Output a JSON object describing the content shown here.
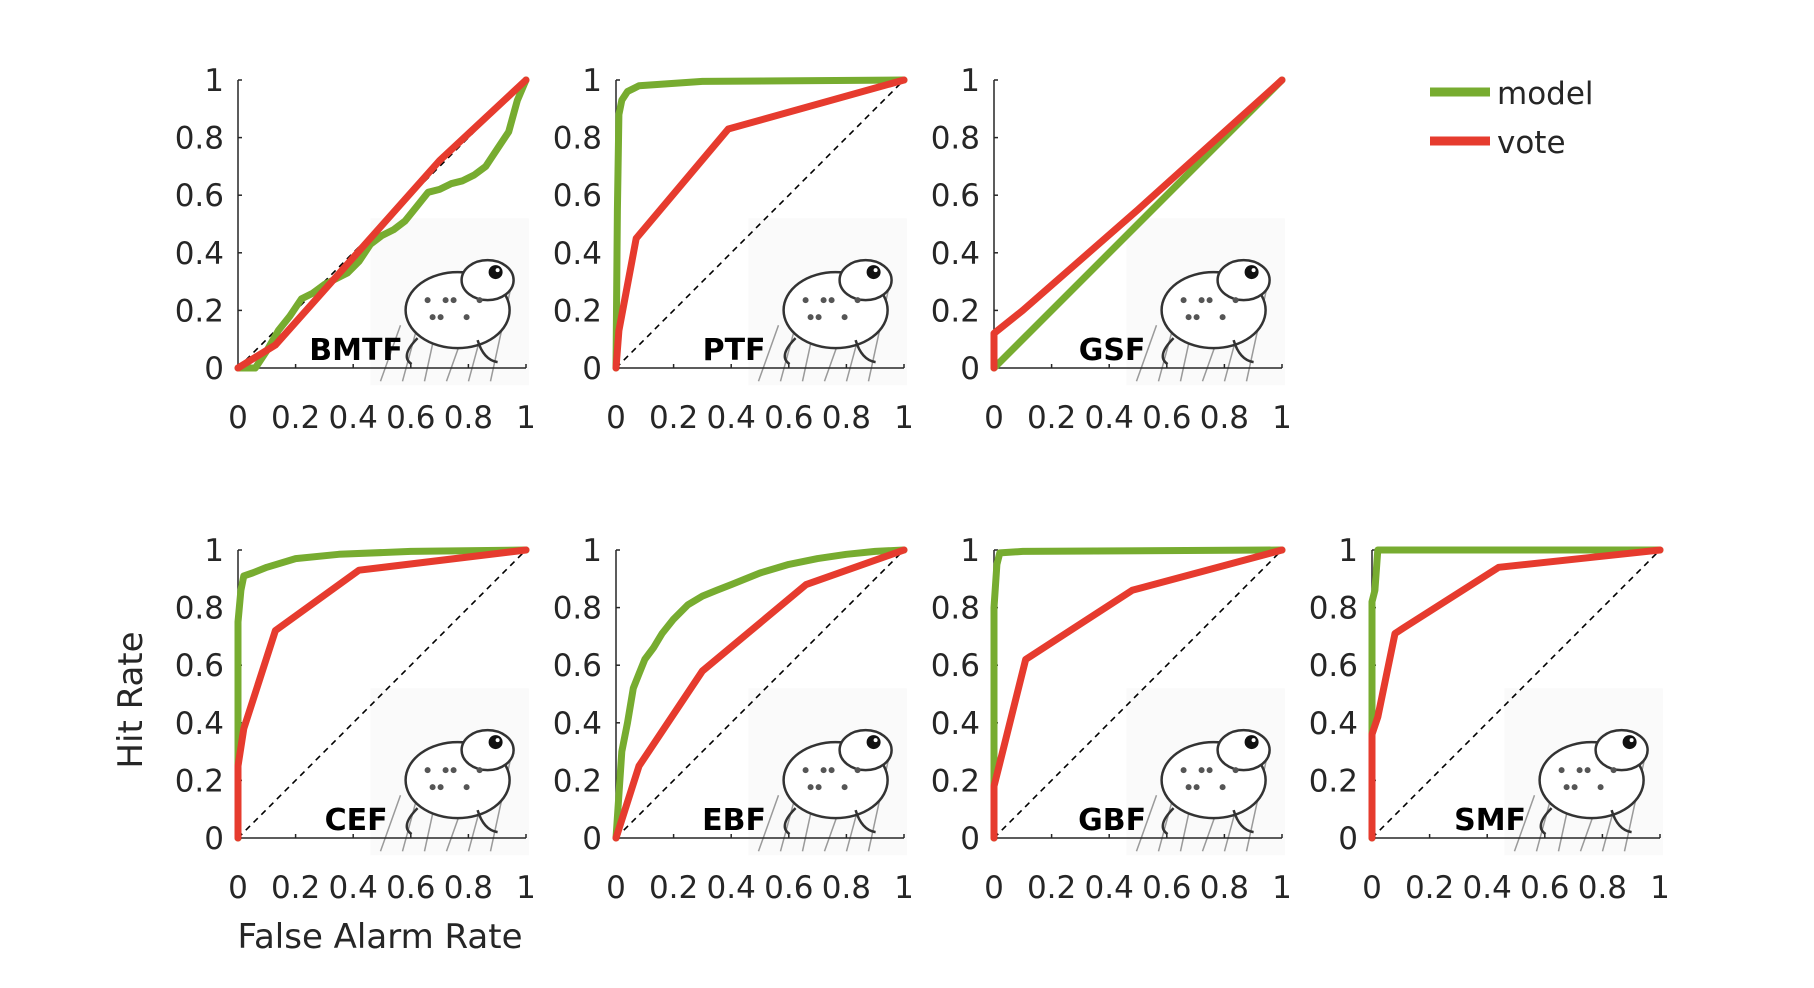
{
  "figure": {
    "xlabel": "False Alarm Rate",
    "ylabel": "Hit Rate",
    "legend": {
      "placement": "top-right",
      "entries": [
        {
          "label": "model",
          "color": "#77AC30"
        },
        {
          "label": "vote",
          "color": "#E63B2E"
        }
      ]
    }
  },
  "chart_data": [
    {
      "type": "line",
      "label": "BMTF",
      "illustration": "frog-on-log-icon",
      "xlim": [
        0,
        1
      ],
      "ylim": [
        0,
        1
      ],
      "xticks": [
        "0",
        "0.2",
        "0.4",
        "0.6",
        "0.8",
        "1"
      ],
      "yticks": [
        "0",
        "0.2",
        "0.4",
        "0.6",
        "0.8",
        "1"
      ],
      "series": [
        {
          "name": "model",
          "color": "#77AC30",
          "points": [
            [
              0,
              0
            ],
            [
              0.06,
              0
            ],
            [
              0.1,
              0.06
            ],
            [
              0.14,
              0.13
            ],
            [
              0.18,
              0.18
            ],
            [
              0.22,
              0.24
            ],
            [
              0.26,
              0.26
            ],
            [
              0.3,
              0.29
            ],
            [
              0.34,
              0.31
            ],
            [
              0.38,
              0.33
            ],
            [
              0.42,
              0.37
            ],
            [
              0.46,
              0.43
            ],
            [
              0.5,
              0.46
            ],
            [
              0.54,
              0.48
            ],
            [
              0.58,
              0.51
            ],
            [
              0.62,
              0.56
            ],
            [
              0.66,
              0.61
            ],
            [
              0.7,
              0.62
            ],
            [
              0.74,
              0.64
            ],
            [
              0.78,
              0.65
            ],
            [
              0.82,
              0.67
            ],
            [
              0.86,
              0.7
            ],
            [
              0.9,
              0.76
            ],
            [
              0.94,
              0.82
            ],
            [
              0.97,
              0.93
            ],
            [
              1,
              1
            ]
          ]
        },
        {
          "name": "vote",
          "color": "#E63B2E",
          "points": [
            [
              0,
              0
            ],
            [
              0.13,
              0.08
            ],
            [
              0.7,
              0.72
            ],
            [
              1,
              1
            ]
          ]
        }
      ]
    },
    {
      "type": "line",
      "label": "PTF",
      "illustration": "spotted-frog-icon",
      "xlim": [
        0,
        1
      ],
      "ylim": [
        0,
        1
      ],
      "xticks": [
        "0",
        "0.2",
        "0.4",
        "0.6",
        "0.8",
        "1"
      ],
      "yticks": [
        "0",
        "0.2",
        "0.4",
        "0.6",
        "0.8",
        "1"
      ],
      "series": [
        {
          "name": "model",
          "color": "#77AC30",
          "points": [
            [
              0,
              0
            ],
            [
              0.005,
              0.55
            ],
            [
              0.01,
              0.88
            ],
            [
              0.02,
              0.93
            ],
            [
              0.04,
              0.96
            ],
            [
              0.08,
              0.98
            ],
            [
              0.3,
              0.995
            ],
            [
              1,
              1
            ]
          ]
        },
        {
          "name": "vote",
          "color": "#E63B2E",
          "points": [
            [
              0,
              0
            ],
            [
              0.01,
              0.13
            ],
            [
              0.07,
              0.45
            ],
            [
              0.39,
              0.83
            ],
            [
              1,
              1
            ]
          ]
        }
      ]
    },
    {
      "type": "line",
      "label": "GSF",
      "illustration": "small-frog-icon",
      "xlim": [
        0,
        1
      ],
      "ylim": [
        0,
        1
      ],
      "xticks": [
        "0",
        "0.2",
        "0.4",
        "0.6",
        "0.8",
        "1"
      ],
      "yticks": [
        "0",
        "0.2",
        "0.4",
        "0.6",
        "0.8",
        "1"
      ],
      "series": [
        {
          "name": "model",
          "color": "#77AC30",
          "points": [
            [
              0,
              0
            ],
            [
              1,
              1
            ]
          ]
        },
        {
          "name": "vote",
          "color": "#E63B2E",
          "points": [
            [
              0,
              0
            ],
            [
              0,
              0.12
            ],
            [
              0.1,
              0.2
            ],
            [
              0.5,
              0.55
            ],
            [
              1,
              1
            ]
          ]
        }
      ]
    },
    {
      "type": "line",
      "label": "CEF",
      "illustration": "frog-in-grass-icon",
      "xlim": [
        0,
        1
      ],
      "ylim": [
        0,
        1
      ],
      "xticks": [
        "0",
        "0.2",
        "0.4",
        "0.6",
        "0.8",
        "1"
      ],
      "yticks": [
        "0",
        "0.2",
        "0.4",
        "0.6",
        "0.8",
        "1"
      ],
      "series": [
        {
          "name": "model",
          "color": "#77AC30",
          "points": [
            [
              0,
              0
            ],
            [
              0,
              0.75
            ],
            [
              0.01,
              0.86
            ],
            [
              0.02,
              0.91
            ],
            [
              0.05,
              0.92
            ],
            [
              0.1,
              0.94
            ],
            [
              0.2,
              0.97
            ],
            [
              0.35,
              0.985
            ],
            [
              0.6,
              0.995
            ],
            [
              1,
              1
            ]
          ]
        },
        {
          "name": "vote",
          "color": "#E63B2E",
          "points": [
            [
              0,
              0
            ],
            [
              0,
              0.25
            ],
            [
              0.02,
              0.38
            ],
            [
              0.13,
              0.72
            ],
            [
              0.42,
              0.93
            ],
            [
              1,
              1
            ]
          ]
        }
      ]
    },
    {
      "type": "line",
      "label": "EBF",
      "illustration": "bullfrog-icon",
      "xlim": [
        0,
        1
      ],
      "ylim": [
        0,
        1
      ],
      "xticks": [
        "0",
        "0.2",
        "0.4",
        "0.6",
        "0.8",
        "1"
      ],
      "yticks": [
        "0",
        "0.2",
        "0.4",
        "0.6",
        "0.8",
        "1"
      ],
      "series": [
        {
          "name": "model",
          "color": "#77AC30",
          "points": [
            [
              0,
              0
            ],
            [
              0.01,
              0.15
            ],
            [
              0.02,
              0.3
            ],
            [
              0.04,
              0.4
            ],
            [
              0.06,
              0.52
            ],
            [
              0.08,
              0.57
            ],
            [
              0.1,
              0.62
            ],
            [
              0.13,
              0.66
            ],
            [
              0.16,
              0.71
            ],
            [
              0.2,
              0.76
            ],
            [
              0.25,
              0.81
            ],
            [
              0.3,
              0.84
            ],
            [
              0.35,
              0.86
            ],
            [
              0.4,
              0.88
            ],
            [
              0.5,
              0.92
            ],
            [
              0.6,
              0.95
            ],
            [
              0.7,
              0.97
            ],
            [
              0.8,
              0.985
            ],
            [
              0.9,
              0.995
            ],
            [
              1,
              1
            ]
          ]
        },
        {
          "name": "vote",
          "color": "#E63B2E",
          "points": [
            [
              0,
              0
            ],
            [
              0.08,
              0.25
            ],
            [
              0.3,
              0.58
            ],
            [
              0.66,
              0.88
            ],
            [
              1,
              1
            ]
          ]
        }
      ]
    },
    {
      "type": "line",
      "label": "GBF",
      "illustration": "toad-icon",
      "xlim": [
        0,
        1
      ],
      "ylim": [
        0,
        1
      ],
      "xticks": [
        "0",
        "0.2",
        "0.4",
        "0.6",
        "0.8",
        "1"
      ],
      "yticks": [
        "0",
        "0.2",
        "0.4",
        "0.6",
        "0.8",
        "1"
      ],
      "series": [
        {
          "name": "model",
          "color": "#77AC30",
          "points": [
            [
              0,
              0
            ],
            [
              0,
              0.8
            ],
            [
              0.01,
              0.95
            ],
            [
              0.02,
              0.99
            ],
            [
              0.1,
              0.995
            ],
            [
              1,
              1
            ]
          ]
        },
        {
          "name": "vote",
          "color": "#E63B2E",
          "points": [
            [
              0,
              0
            ],
            [
              0,
              0.18
            ],
            [
              0.02,
              0.26
            ],
            [
              0.11,
              0.62
            ],
            [
              0.48,
              0.86
            ],
            [
              1,
              1
            ]
          ]
        }
      ]
    },
    {
      "type": "line",
      "label": "SMF",
      "illustration": "striped-frog-icon",
      "xlim": [
        0,
        1
      ],
      "ylim": [
        0,
        1
      ],
      "xticks": [
        "0",
        "0.2",
        "0.4",
        "0.6",
        "0.8",
        "1"
      ],
      "yticks": [
        "0",
        "0.2",
        "0.4",
        "0.6",
        "0.8",
        "1"
      ],
      "series": [
        {
          "name": "model",
          "color": "#77AC30",
          "points": [
            [
              0,
              0
            ],
            [
              0,
              0.82
            ],
            [
              0.01,
              0.86
            ],
            [
              0.02,
              1
            ],
            [
              1,
              1
            ]
          ]
        },
        {
          "name": "vote",
          "color": "#E63B2E",
          "points": [
            [
              0,
              0
            ],
            [
              0,
              0.36
            ],
            [
              0.02,
              0.42
            ],
            [
              0.08,
              0.71
            ],
            [
              0.11,
              0.73
            ],
            [
              0.44,
              0.94
            ],
            [
              1,
              1
            ]
          ]
        }
      ]
    }
  ]
}
